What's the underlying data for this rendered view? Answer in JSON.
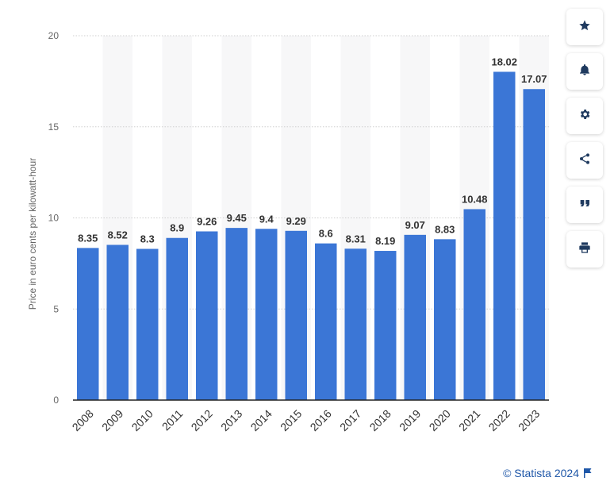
{
  "chart_data": {
    "type": "bar",
    "categories": [
      "2008",
      "2009",
      "2010",
      "2011",
      "2012",
      "2013",
      "2014",
      "2015",
      "2016",
      "2017",
      "2018",
      "2019",
      "2020",
      "2021",
      "2022",
      "2023"
    ],
    "values": [
      8.35,
      8.52,
      8.3,
      8.9,
      9.26,
      9.45,
      9.4,
      9.29,
      8.6,
      8.31,
      8.19,
      9.07,
      8.83,
      10.48,
      18.02,
      17.07
    ],
    "data_labels": [
      "8.35",
      "8.52",
      "8.3",
      "8.9",
      "9.26",
      "9.45",
      "9.4",
      "9.29",
      "8.6",
      "8.31",
      "8.19",
      "9.07",
      "8.83",
      "10.48",
      "18.02",
      "17.07"
    ],
    "ylabel": "Price in euro cents per kilowatt-hour",
    "xlabel": "",
    "ylim": [
      0,
      20
    ],
    "yticks": [
      "0",
      "5",
      "10",
      "15",
      "20"
    ],
    "grid": true,
    "bar_color": "#3b76d6"
  },
  "side_toolbar": {
    "buttons": [
      {
        "name": "star-icon"
      },
      {
        "name": "bell-icon"
      },
      {
        "name": "gear-icon"
      },
      {
        "name": "share-icon"
      },
      {
        "name": "quote-icon"
      },
      {
        "name": "print-icon"
      }
    ]
  },
  "footer": {
    "credit": "© Statista 2024",
    "icon": "flag-icon",
    "color": "#1f57a8"
  }
}
